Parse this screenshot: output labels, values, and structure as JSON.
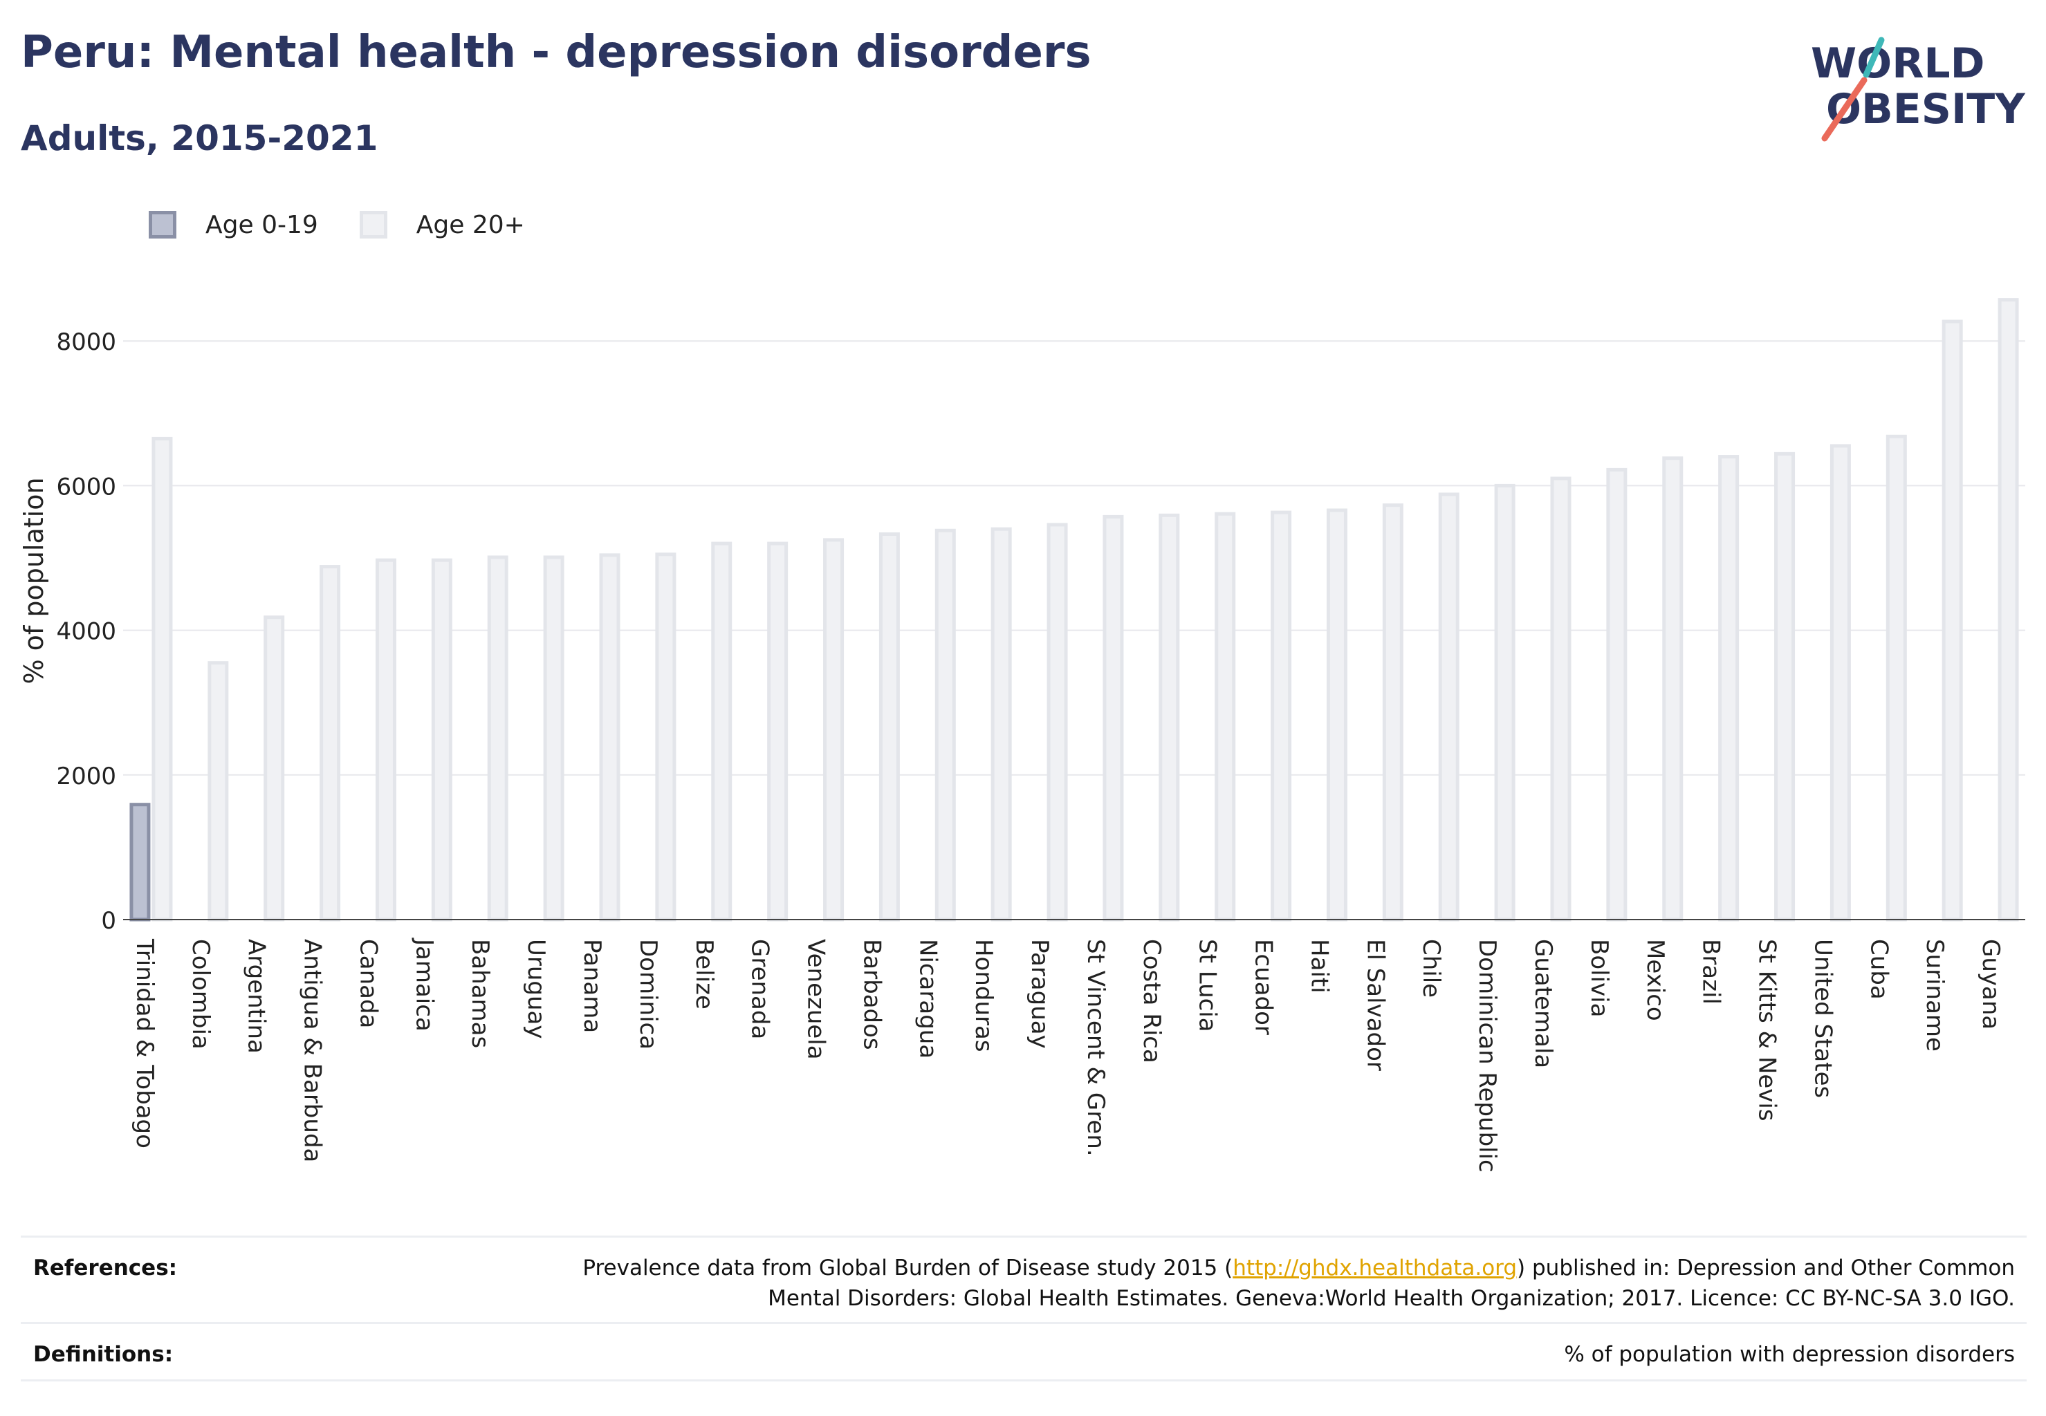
{
  "header": {
    "title": "Peru: Mental health - depression disorders",
    "subtitle": "Adults, 2015-2021"
  },
  "logo": {
    "line1": "WORLD",
    "line2": "OBESITY"
  },
  "colors": {
    "title": "#2b3560",
    "series0_fill": "#bcc1d2",
    "series0_stroke": "#8a90a6",
    "series1_fill": "#f0f1f4",
    "series1_stroke": "#e3e5ea",
    "grid": "#e7e8ec",
    "link": "#e0a300"
  },
  "legend": [
    "Age 0-19",
    "Age 20+"
  ],
  "chart_data": {
    "type": "bar",
    "ylabel": "% of population",
    "xlabel": "",
    "ylim": [
      0,
      8700
    ],
    "yticks": [
      0,
      2000,
      4000,
      6000,
      8000
    ],
    "grid": true,
    "legend_position": "top-left",
    "categories": [
      "Trinidad & Tobago",
      "Colombia",
      "Argentina",
      "Antigua & Barbuda",
      "Canada",
      "Jamaica",
      "Bahamas",
      "Uruguay",
      "Panama",
      "Dominica",
      "Belize",
      "Grenada",
      "Venezuela",
      "Barbados",
      "Nicaragua",
      "Honduras",
      "Paraguay",
      "St Vincent & Gren.",
      "Costa Rica",
      "St Lucia",
      "Ecuador",
      "Haiti",
      "El Salvador",
      "Chile",
      "Dominican Republic",
      "Guatemala",
      "Bolivia",
      "Mexico",
      "Brazil",
      "St Kitts & Nevis",
      "United States",
      "Cuba",
      "Suriname",
      "Guyana"
    ],
    "series": [
      {
        "name": "Age 0-19",
        "values": [
          1590,
          null,
          null,
          null,
          null,
          null,
          null,
          null,
          null,
          null,
          null,
          null,
          null,
          null,
          null,
          null,
          null,
          null,
          null,
          null,
          null,
          null,
          null,
          null,
          null,
          null,
          null,
          null,
          null,
          null,
          null,
          null,
          null,
          null
        ]
      },
      {
        "name": "Age 20+",
        "values": [
          6650,
          3550,
          4180,
          4880,
          4970,
          4970,
          5010,
          5010,
          5040,
          5050,
          5200,
          5200,
          5250,
          5330,
          5380,
          5400,
          5460,
          5570,
          5590,
          5610,
          5630,
          5660,
          5730,
          5880,
          6000,
          6100,
          6220,
          6380,
          6400,
          6440,
          6550,
          6680,
          8270,
          8570
        ]
      }
    ]
  },
  "footer": {
    "references_label": "References:",
    "references_text_before": "Prevalence data from Global Burden of Disease study 2015 (",
    "references_link": "http://ghdx.healthdata.org",
    "references_text_after": ") published in: Depression and Other Common",
    "references_line2": "Mental Disorders: Global Health Estimates. Geneva:World Health Organization; 2017. Licence: CC BY-NC-SA 3.0 IGO.",
    "definitions_label": "Definitions:",
    "definitions_text": "% of population with depression disorders"
  }
}
